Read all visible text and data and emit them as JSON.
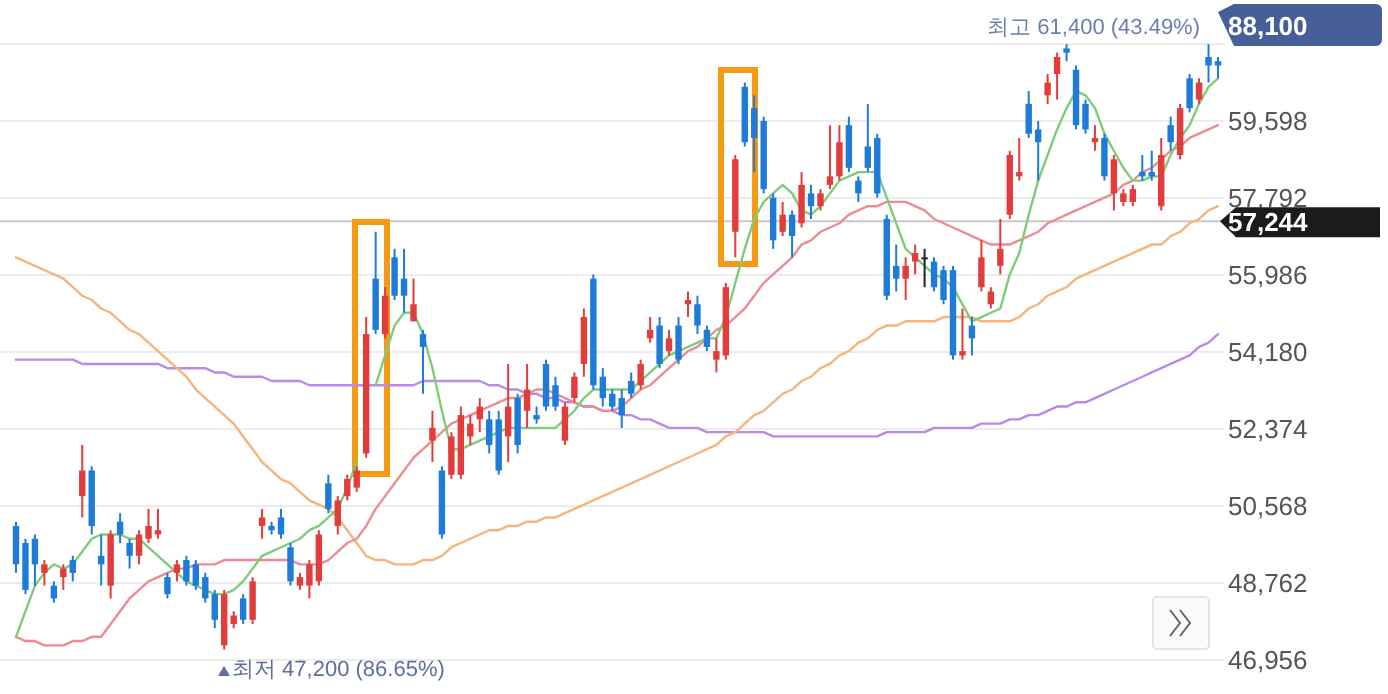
{
  "chart_data": {
    "type": "candlestick",
    "categories": [
      null,
      null,
      null,
      null,
      null,
      null,
      null,
      null,
      null,
      null,
      null,
      null,
      null,
      null,
      null,
      null,
      null,
      null,
      null,
      null,
      null,
      null,
      null,
      null,
      null,
      null,
      null,
      null,
      null,
      null,
      null,
      null,
      null,
      null,
      null,
      null,
      null,
      null,
      null,
      null,
      null,
      null,
      null,
      null,
      null,
      null,
      null,
      null,
      null,
      null,
      null,
      null,
      null,
      null,
      null,
      null,
      null,
      null,
      null,
      null,
      null,
      null,
      null,
      null,
      null,
      null,
      null,
      null,
      null,
      null,
      null,
      null,
      null,
      null,
      null,
      null,
      null,
      null,
      null,
      null,
      null,
      null,
      null,
      null,
      null,
      null,
      null,
      null,
      null,
      null,
      null,
      null,
      null,
      null,
      null,
      null,
      null,
      null,
      null,
      null,
      null,
      null,
      null,
      null,
      null,
      null,
      null,
      null,
      null,
      null,
      null,
      null,
      null,
      null,
      null,
      null,
      null,
      null,
      null,
      null,
      null,
      null,
      null,
      null,
      null,
      null,
      null,
      null
    ],
    "ohlc": [
      [
        50100,
        50200,
        49000,
        49200
      ],
      [
        49700,
        49800,
        48500,
        48600
      ],
      [
        49800,
        49900,
        48700,
        49200
      ],
      [
        49000,
        49300,
        48700,
        49200
      ],
      [
        48700,
        48800,
        48300,
        48400
      ],
      [
        48900,
        49200,
        48600,
        49100
      ],
      [
        49300,
        49400,
        48800,
        49000
      ],
      [
        50800,
        52000,
        50300,
        51400
      ],
      [
        51400,
        51500,
        49900,
        50100
      ],
      [
        49400,
        49900,
        48700,
        49200
      ],
      [
        48700,
        50000,
        48400,
        49900
      ],
      [
        50200,
        50400,
        49700,
        49900
      ],
      [
        49700,
        49800,
        49100,
        49400
      ],
      [
        49400,
        50000,
        49200,
        49900
      ],
      [
        49800,
        50500,
        49700,
        50100
      ],
      [
        49900,
        50500,
        49800,
        50000
      ],
      [
        48900,
        49000,
        48400,
        48500
      ],
      [
        49000,
        49300,
        48800,
        49200
      ],
      [
        49300,
        49400,
        48700,
        48800
      ],
      [
        49200,
        49300,
        48600,
        48700
      ],
      [
        48900,
        49000,
        48300,
        48400
      ],
      [
        48500,
        48600,
        47700,
        47900
      ],
      [
        47300,
        48600,
        47200,
        48500
      ],
      [
        47800,
        48100,
        47700,
        48000
      ],
      [
        48400,
        48500,
        47800,
        47900
      ],
      [
        47900,
        48900,
        47800,
        48800
      ],
      [
        50100,
        50500,
        49800,
        50300
      ],
      [
        50100,
        50200,
        49900,
        50000
      ],
      [
        50300,
        50500,
        49800,
        49900
      ],
      [
        49600,
        49700,
        48700,
        48800
      ],
      [
        48700,
        49000,
        48600,
        48900
      ],
      [
        48700,
        49300,
        48400,
        49200
      ],
      [
        48800,
        50000,
        48700,
        49900
      ],
      [
        51100,
        51300,
        50400,
        50500
      ],
      [
        50100,
        50800,
        49900,
        50700
      ],
      [
        50800,
        51300,
        50700,
        51200
      ],
      [
        51000,
        51500,
        50900,
        51400
      ],
      [
        51800,
        55000,
        51700,
        54600
      ],
      [
        55900,
        57000,
        54600,
        54700
      ],
      [
        54600,
        55700,
        54500,
        55500
      ],
      [
        56400,
        56600,
        55400,
        55500
      ],
      [
        55900,
        56600,
        55100,
        55500
      ],
      [
        54900,
        55900,
        54900,
        55300
      ],
      [
        54600,
        54700,
        53200,
        54300
      ],
      [
        52100,
        52800,
        51600,
        52400
      ],
      [
        51400,
        51500,
        49800,
        49900
      ],
      [
        51300,
        52300,
        51200,
        52200
      ],
      [
        51300,
        52900,
        51200,
        52700
      ],
      [
        52200,
        52700,
        52000,
        52500
      ],
      [
        52600,
        53100,
        52300,
        52900
      ],
      [
        52600,
        52800,
        51800,
        52000
      ],
      [
        52600,
        52800,
        51300,
        51400
      ],
      [
        52200,
        53900,
        51600,
        52900
      ],
      [
        53100,
        53200,
        51800,
        52000
      ],
      [
        52800,
        53900,
        52400,
        53300
      ],
      [
        52700,
        52900,
        52500,
        52600
      ],
      [
        53900,
        54000,
        52800,
        52900
      ],
      [
        53400,
        53600,
        52800,
        52900
      ],
      [
        52100,
        53000,
        52000,
        52900
      ],
      [
        53100,
        53700,
        53000,
        53600
      ],
      [
        53900,
        55200,
        53600,
        55000
      ],
      [
        55900,
        56000,
        53300,
        53400
      ],
      [
        53600,
        53800,
        52900,
        53100
      ],
      [
        53200,
        53300,
        52800,
        52900
      ],
      [
        53100,
        53300,
        52400,
        52700
      ],
      [
        53500,
        53700,
        53100,
        53200
      ],
      [
        53400,
        54000,
        53300,
        53900
      ],
      [
        54500,
        55000,
        54400,
        54700
      ],
      [
        54800,
        55000,
        53800,
        53900
      ],
      [
        54200,
        54700,
        54100,
        54500
      ],
      [
        54800,
        55000,
        53900,
        54000
      ],
      [
        55300,
        55600,
        55000,
        55400
      ],
      [
        55300,
        55500,
        54600,
        54800
      ],
      [
        54700,
        54800,
        54200,
        54300
      ],
      [
        54000,
        54500,
        53700,
        54200
      ],
      [
        54100,
        55800,
        54000,
        55700
      ],
      [
        57000,
        58800,
        56400,
        58700
      ],
      [
        60400,
        60500,
        59000,
        59100
      ],
      [
        59900,
        60200,
        58400,
        59200
      ],
      [
        59600,
        59700,
        57900,
        58000
      ],
      [
        57800,
        57900,
        56600,
        56800
      ],
      [
        57000,
        57700,
        56900,
        57400
      ],
      [
        57400,
        57500,
        56400,
        56900
      ],
      [
        57200,
        58400,
        57100,
        58100
      ],
      [
        57900,
        58100,
        57300,
        57600
      ],
      [
        57600,
        58000,
        57500,
        57900
      ],
      [
        58100,
        59500,
        58000,
        58300
      ],
      [
        58300,
        59500,
        58200,
        59100
      ],
      [
        59500,
        59700,
        58400,
        58500
      ],
      [
        58200,
        58300,
        57700,
        57900
      ],
      [
        59000,
        60000,
        58400,
        58500
      ],
      [
        59200,
        59300,
        57800,
        57900
      ],
      [
        57300,
        57400,
        55400,
        55500
      ],
      [
        56200,
        56700,
        55600,
        55900
      ],
      [
        55900,
        56400,
        55400,
        56200
      ],
      [
        56300,
        56700,
        56000,
        56500
      ],
      [
        56400,
        56600,
        55700,
        56400
      ],
      [
        56300,
        56400,
        55600,
        55700
      ],
      [
        56100,
        56200,
        55300,
        55400
      ],
      [
        56100,
        56200,
        54000,
        54100
      ],
      [
        54100,
        55200,
        54000,
        54200
      ],
      [
        54800,
        55000,
        54100,
        54500
      ],
      [
        55700,
        56800,
        55600,
        56400
      ],
      [
        55300,
        55700,
        55200,
        55600
      ],
      [
        56200,
        57300,
        56000,
        56600
      ],
      [
        57400,
        58900,
        57300,
        58800
      ],
      [
        58300,
        59200,
        58200,
        58400
      ],
      [
        60000,
        60300,
        59200,
        59300
      ],
      [
        59400,
        59600,
        58200,
        59100
      ],
      [
        60200,
        60700,
        60000,
        60500
      ],
      [
        60700,
        61200,
        60100,
        61100
      ],
      [
        61300,
        61400,
        61000,
        61200
      ],
      [
        60800,
        60900,
        59400,
        59500
      ],
      [
        60000,
        60100,
        59300,
        59400
      ],
      [
        59100,
        59500,
        58900,
        59200
      ],
      [
        59200,
        59300,
        58200,
        58300
      ],
      [
        57900,
        58800,
        57500,
        58700
      ],
      [
        57700,
        58000,
        57600,
        57900
      ],
      [
        57700,
        58100,
        57600,
        58000
      ],
      [
        58400,
        58800,
        58200,
        58300
      ],
      [
        58400,
        58900,
        58200,
        58300
      ],
      [
        57600,
        59200,
        57500,
        58800
      ],
      [
        59500,
        59700,
        58900,
        59100
      ],
      [
        58800,
        60000,
        58700,
        59900
      ],
      [
        60600,
        60700,
        59800,
        59900
      ],
      [
        60100,
        60600,
        60000,
        60500
      ],
      [
        61100,
        61400,
        60500,
        60900
      ],
      [
        61000,
        61100,
        60600,
        60900
      ]
    ],
    "series": [
      {
        "type": "line",
        "color": "#b98ae8",
        "values": [
          54000,
          54000,
          54000,
          54000,
          54000,
          54000,
          54000,
          53900,
          53900,
          53900,
          53900,
          53900,
          53900,
          53900,
          53900,
          53900,
          53800,
          53800,
          53800,
          53800,
          53800,
          53700,
          53700,
          53600,
          53600,
          53600,
          53600,
          53500,
          53500,
          53500,
          53500,
          53400,
          53400,
          53400,
          53400,
          53400,
          53400,
          53400,
          53400,
          53400,
          53400,
          53400,
          53400,
          53500,
          53500,
          53500,
          53500,
          53500,
          53500,
          53500,
          53400,
          53400,
          53300,
          53300,
          53200,
          53200,
          53100,
          53100,
          53000,
          53000,
          52900,
          52900,
          52800,
          52800,
          52700,
          52700,
          52600,
          52600,
          52500,
          52400,
          52400,
          52400,
          52400,
          52300,
          52300,
          52300,
          52300,
          52300,
          52300,
          52300,
          52200,
          52200,
          52200,
          52200,
          52200,
          52200,
          52200,
          52200,
          52200,
          52200,
          52200,
          52200,
          52300,
          52300,
          52300,
          52300,
          52300,
          52400,
          52400,
          52400,
          52400,
          52400,
          52500,
          52500,
          52500,
          52600,
          52600,
          52700,
          52700,
          52800,
          52900,
          52900,
          53000,
          53000,
          53100,
          53200,
          53300,
          53400,
          53500,
          53600,
          53700,
          53800,
          53900,
          54000,
          54100,
          54300,
          54400,
          54600
        ]
      },
      {
        "type": "line",
        "color": "#f5b57c",
        "values": [
          56400,
          56300,
          56200,
          56100,
          56000,
          55900,
          55700,
          55500,
          55400,
          55200,
          55100,
          54900,
          54700,
          54600,
          54400,
          54200,
          54000,
          53800,
          53600,
          53300,
          53100,
          52900,
          52700,
          52500,
          52200,
          51900,
          51600,
          51400,
          51200,
          51100,
          50900,
          50700,
          50600,
          50500,
          50300,
          50000,
          49700,
          49400,
          49300,
          49300,
          49200,
          49200,
          49200,
          49300,
          49300,
          49400,
          49600,
          49700,
          49800,
          49900,
          50000,
          50000,
          50100,
          50100,
          50200,
          50200,
          50300,
          50300,
          50400,
          50500,
          50600,
          50700,
          50800,
          50900,
          51000,
          51100,
          51200,
          51300,
          51400,
          51500,
          51600,
          51700,
          51800,
          51900,
          52000,
          52200,
          52300,
          52500,
          52700,
          52800,
          53000,
          53200,
          53300,
          53500,
          53600,
          53800,
          53900,
          54100,
          54200,
          54400,
          54500,
          54700,
          54800,
          54800,
          54900,
          54900,
          54900,
          54900,
          55000,
          55000,
          55000,
          55000,
          54900,
          54900,
          54900,
          54900,
          55000,
          55200,
          55300,
          55500,
          55600,
          55700,
          55900,
          56000,
          56100,
          56200,
          56300,
          56400,
          56500,
          56600,
          56700,
          56700,
          56900,
          57000,
          57200,
          57300,
          57500,
          57600
        ]
      },
      {
        "type": "line",
        "color": "#ec8d93",
        "values": [
          47500,
          47400,
          47400,
          47300,
          47300,
          47300,
          47400,
          47400,
          47500,
          47500,
          47800,
          48100,
          48400,
          48600,
          48800,
          48900,
          49000,
          49100,
          49100,
          49200,
          49200,
          49200,
          49300,
          49300,
          49300,
          49300,
          49300,
          49300,
          49300,
          49300,
          49200,
          49200,
          49200,
          49300,
          49500,
          49700,
          49800,
          50100,
          50500,
          50800,
          51100,
          51400,
          51700,
          51900,
          52100,
          52300,
          52500,
          52600,
          52700,
          52800,
          52900,
          53000,
          53100,
          53100,
          53200,
          53300,
          53300,
          53200,
          53100,
          53000,
          52900,
          52900,
          52800,
          52800,
          52900,
          53100,
          53300,
          53400,
          53600,
          53800,
          54000,
          54200,
          54300,
          54500,
          54700,
          54800,
          55000,
          55200,
          55500,
          55800,
          56000,
          56200,
          56400,
          56700,
          56800,
          57000,
          57100,
          57200,
          57400,
          57500,
          57600,
          57600,
          57700,
          57700,
          57700,
          57600,
          57500,
          57300,
          57200,
          57100,
          57000,
          56900,
          56800,
          56700,
          56700,
          56700,
          56800,
          56900,
          57000,
          57200,
          57300,
          57400,
          57500,
          57600,
          57700,
          57800,
          57900,
          58100,
          58200,
          58400,
          58500,
          58700,
          58900,
          59000,
          59200,
          59300,
          59400,
          59500
        ]
      },
      {
        "type": "line",
        "color": "#7fcc7a",
        "values": [
          47500,
          48100,
          48700,
          49000,
          49200,
          49100,
          49200,
          49500,
          49800,
          49900,
          49900,
          49900,
          49800,
          49800,
          49600,
          49400,
          49200,
          49000,
          48800,
          48700,
          48600,
          48500,
          48500,
          48600,
          48800,
          49100,
          49400,
          49500,
          49600,
          49700,
          49800,
          50000,
          50100,
          50300,
          50500,
          51000,
          51600,
          null,
          53400,
          54100,
          54800,
          55100,
          55100,
          54600,
          53800,
          52800,
          51900,
          51900,
          52000,
          52100,
          52200,
          52300,
          52400,
          52400,
          52400,
          52400,
          52400,
          52400,
          52600,
          52800,
          53100,
          53300,
          53300,
          53300,
          53300,
          53300,
          53500,
          53700,
          53900,
          54100,
          54200,
          54300,
          54400,
          54500,
          54500,
          55000,
          55800,
          56600,
          57300,
          57700,
          57900,
          58100,
          57900,
          57500,
          57400,
          57600,
          57900,
          58200,
          58300,
          58400,
          58400,
          58400,
          57800,
          57200,
          56600,
          56400,
          56200,
          56000,
          55900,
          55700,
          55300,
          54900,
          55000,
          55100,
          55200,
          56000,
          56500,
          57400,
          58200,
          58800,
          59400,
          59900,
          60300,
          60200,
          59900,
          59300,
          58900,
          58500,
          58200,
          58200,
          58300,
          58300,
          58800,
          59200,
          59500,
          60000,
          60400,
          60600
        ]
      }
    ],
    "ylim": [
      46956,
      61404
    ],
    "yticks": [
      {
        "value": 46956,
        "label": "46,956"
      },
      {
        "value": 48762,
        "label": "48,762"
      },
      {
        "value": 50568,
        "label": "50,568"
      },
      {
        "value": 52374,
        "label": "52,374"
      },
      {
        "value": 54180,
        "label": "54,180"
      },
      {
        "value": 55986,
        "label": "55,986"
      },
      {
        "value": 57792,
        "label": "57,792"
      },
      {
        "value": 59598,
        "label": "59,598"
      },
      {
        "value": 61404,
        "label": null
      }
    ],
    "tick_labels": "y",
    "grid": "y",
    "ref_lines": [
      {
        "axis": "y",
        "value": 57244,
        "label": "57,244",
        "color": "#c8c8c8"
      }
    ],
    "annotations": [
      "최고 61,400 (43.49%)",
      "최저 47,200 (86.65%)",
      "88,100"
    ]
  }
}
